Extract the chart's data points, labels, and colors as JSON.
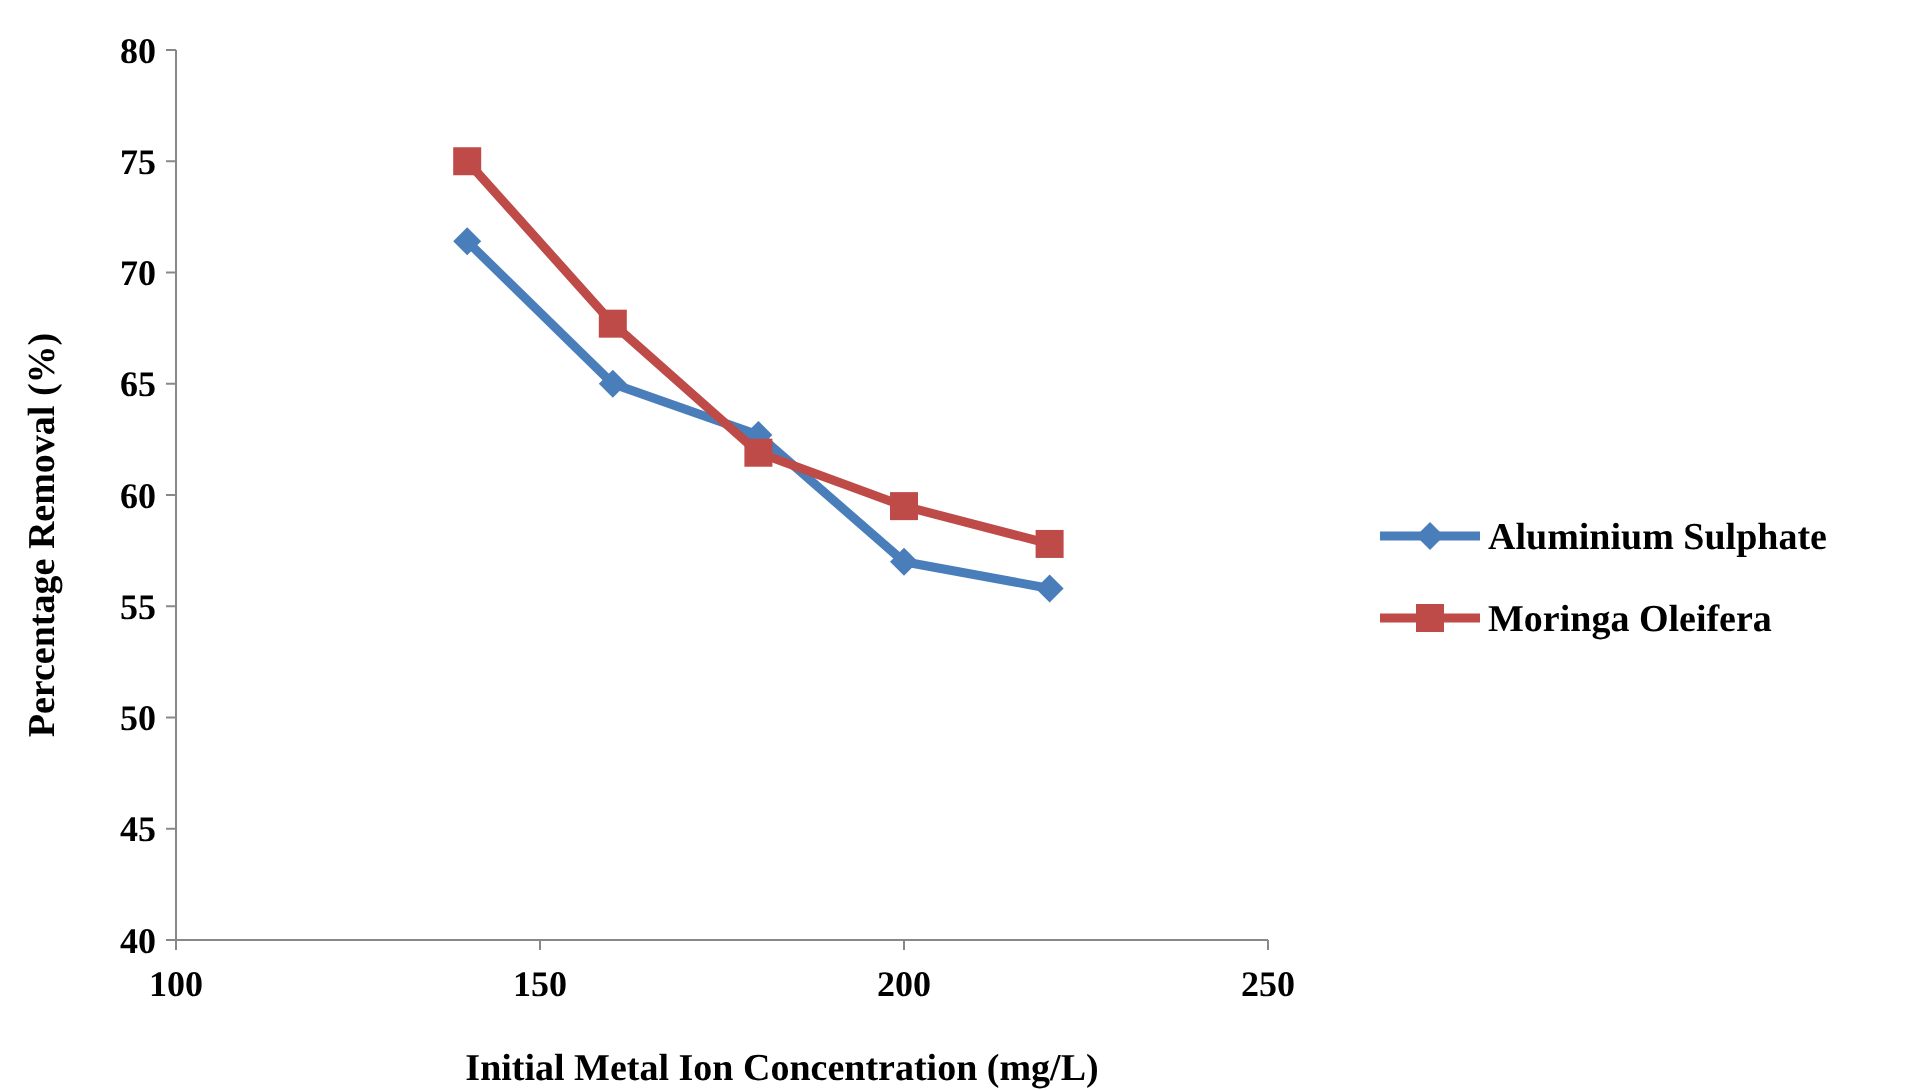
{
  "chart_data": {
    "type": "line",
    "xlabel": "Initial Metal Ion Concentration (mg/L)",
    "ylabel": "Percentage Removal (%)",
    "x": [
      140,
      160,
      180,
      200,
      220
    ],
    "series": [
      {
        "name": "Aluminium Sulphate",
        "color": "#4a7ebb",
        "values": [
          71.4,
          65.0,
          62.7,
          57.0,
          55.8
        ],
        "marker": "diamond"
      },
      {
        "name": "Moringa Oleifera",
        "color": "#be4b48",
        "values": [
          75.0,
          67.7,
          61.9,
          59.5,
          57.8
        ],
        "marker": "square"
      }
    ],
    "xlim": [
      100,
      250
    ],
    "xticks": [
      100,
      150,
      200,
      250
    ],
    "ylim": [
      40,
      80
    ],
    "yticks": [
      40,
      45,
      50,
      55,
      60,
      65,
      70,
      75,
      80
    ],
    "grid": false,
    "legend": "right",
    "line_style": "solid"
  }
}
